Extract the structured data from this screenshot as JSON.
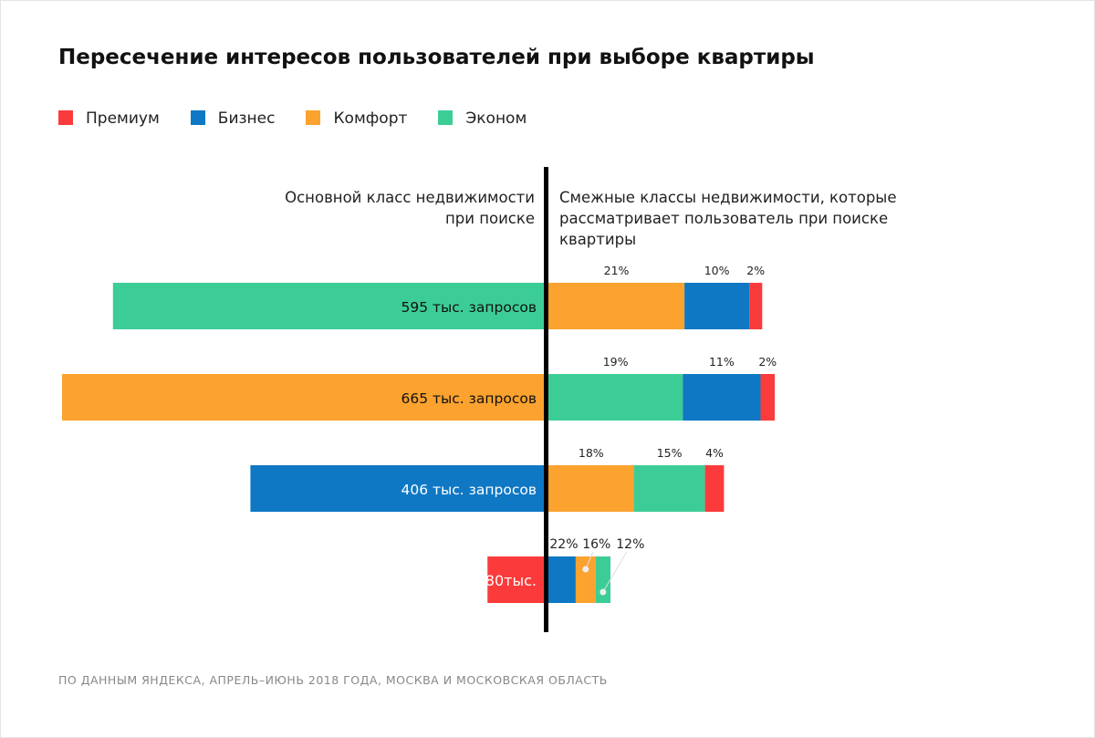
{
  "title": "Пересечение интересов пользователей при выборе квартиры",
  "colors": {
    "Премиум": "#fb3b3b",
    "Бизнес": "#0f78c4",
    "Комфорт": "#fba22f",
    "Эконом": "#3ccd96"
  },
  "legend": [
    "Премиум",
    "Бизнес",
    "Комфорт",
    "Эконом"
  ],
  "left_header": "Основной класс недвижимости при поиске",
  "right_header": "Смежные классы недвижимости, которые рассматривает пользователь при поиске квартиры",
  "footer": "ПО ДАННЫМ ЯНДЕКСА, АПРЕЛЬ–ИЮНЬ 2018 ГОДА, МОСКВА И МОСКОВСКАЯ ОБЛАСТЬ",
  "chart_data": {
    "type": "bar",
    "rows": [
      {
        "class": "Эконом",
        "requests": 595,
        "label": "595 тыс. запросов",
        "adjacent": [
          {
            "class": "Комфорт",
            "pct": 21,
            "label": "21%"
          },
          {
            "class": "Бизнес",
            "pct": 10,
            "label": "10%"
          },
          {
            "class": "Премиум",
            "pct": 2,
            "label": "2%"
          }
        ]
      },
      {
        "class": "Комфорт",
        "requests": 665,
        "label": "665 тыс. запросов",
        "adjacent": [
          {
            "class": "Эконом",
            "pct": 19,
            "label": "19%"
          },
          {
            "class": "Бизнес",
            "pct": 11,
            "label": "11%"
          },
          {
            "class": "Премиум",
            "pct": 2,
            "label": "2%"
          }
        ]
      },
      {
        "class": "Бизнес",
        "requests": 406,
        "label": "406 тыс. запросов",
        "adjacent": [
          {
            "class": "Комфорт",
            "pct": 18,
            "label": "18%"
          },
          {
            "class": "Эконом",
            "pct": 15,
            "label": "15%"
          },
          {
            "class": "Премиум",
            "pct": 4,
            "label": "4%"
          }
        ]
      },
      {
        "class": "Премиум",
        "requests": 80,
        "label": "80тыс.",
        "adjacent": [
          {
            "class": "Бизнес",
            "pct": 22,
            "label": "22%"
          },
          {
            "class": "Комфорт",
            "pct": 16,
            "label": "16%"
          },
          {
            "class": "Эконом",
            "pct": 12,
            "label": "12%"
          }
        ]
      }
    ]
  }
}
